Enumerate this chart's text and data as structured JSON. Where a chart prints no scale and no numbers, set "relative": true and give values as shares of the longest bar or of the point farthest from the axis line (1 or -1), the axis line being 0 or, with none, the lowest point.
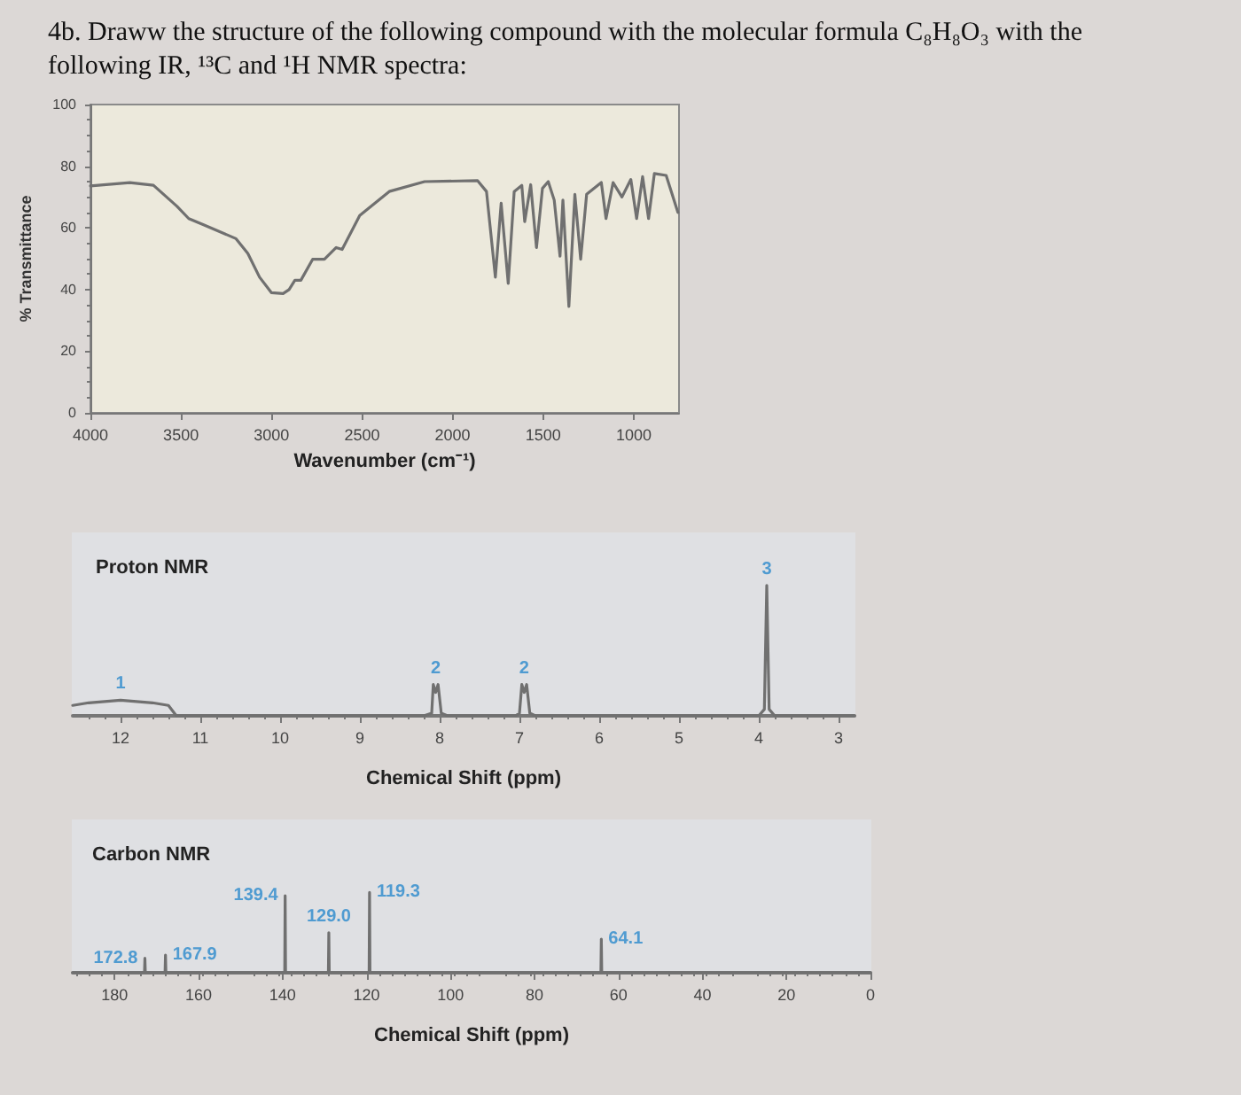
{
  "chart_data": [
    {
      "type": "line",
      "title": "4b. Draww the structure of the following compound with the molecular formula C₈H₈O₃ with the following IR, ¹³C and ¹H NMR spectra:",
      "xlabel": "Wavenumber (cm⁻¹)",
      "ylabel": "% Transmittance",
      "xlim": [
        4000,
        750
      ],
      "xticks": [
        4000,
        3500,
        3000,
        2500,
        2000,
        1500,
        1000
      ],
      "ylim": [
        0,
        100
      ],
      "yticks": [
        0,
        20,
        40,
        60,
        80,
        100
      ],
      "grid": false,
      "marker": "none",
      "line_style": "solid",
      "x": [
        4000,
        3782,
        3652,
        3522,
        3457,
        3375,
        3196,
        3131,
        3066,
        3001,
        2936,
        2903,
        2871,
        2838,
        2773,
        2708,
        2643,
        2610,
        2513,
        2350,
        2155,
        1862,
        1813,
        1764,
        1732,
        1693,
        1660,
        1618,
        1602,
        1569,
        1537,
        1504,
        1472,
        1439,
        1407,
        1391,
        1358,
        1325,
        1293,
        1260,
        1179,
        1153,
        1114,
        1065,
        1016,
        984,
        951,
        918,
        886,
        821,
        756
      ],
      "series": [
        {
          "color": "#707070",
          "values": [
            73.6,
            74.7,
            73.8,
            67,
            63,
            61,
            56.5,
            51.7,
            44,
            39,
            38.7,
            40,
            43,
            43,
            49.8,
            49.8,
            53.6,
            53,
            64,
            71.8,
            75,
            75.3,
            71.8,
            44,
            68,
            42,
            71.8,
            73.8,
            62,
            74,
            53.6,
            72.8,
            75,
            69,
            50.8,
            69,
            34.5,
            70.9,
            49.8,
            70.9,
            74.7,
            63,
            74.7,
            70,
            75.7,
            63,
            76.6,
            63,
            77.6,
            77,
            65
          ]
        }
      ]
    },
    {
      "type": "line",
      "title": "Proton NMR",
      "xlabel": "Chemical Shift (ppm)",
      "relative": true,
      "xlim": [
        12.6,
        2.8
      ],
      "xticks": [
        12,
        11,
        10,
        9,
        8,
        7,
        6,
        5,
        4,
        3
      ],
      "grid": false,
      "marker": "none",
      "line_style": "solid",
      "x": [
        12.6,
        12.4,
        12.2,
        12.0,
        11.8,
        11.6,
        11.4,
        11.3,
        8.2,
        8.1,
        8.08,
        8.05,
        8.02,
        7.98,
        7.9,
        7.05,
        7.0,
        6.97,
        6.94,
        6.91,
        6.87,
        6.8,
        4.0,
        3.93,
        3.9,
        3.87,
        3.8,
        2.8
      ],
      "series": [
        {
          "color": "#707070",
          "values": [
            0.08,
            0.1,
            0.11,
            0.12,
            0.11,
            0.1,
            0.08,
            0,
            0,
            0.02,
            0.24,
            0.18,
            0.24,
            0.02,
            0,
            0,
            0.02,
            0.24,
            0.18,
            0.24,
            0.02,
            0,
            0,
            0.05,
            1,
            0.05,
            0,
            0
          ]
        }
      ],
      "annotations": [
        {
          "text": "1",
          "x": 12.0,
          "y": 0.12
        },
        {
          "text": "2",
          "x": 8.05,
          "y": 0.24
        },
        {
          "text": "2",
          "x": 6.94,
          "y": 0.24
        },
        {
          "text": "3",
          "x": 3.9,
          "y": 1
        }
      ]
    },
    {
      "type": "line",
      "title": "Carbon NMR",
      "xlabel": "Chemical Shift (ppm)",
      "relative": true,
      "xlim": [
        190,
        0
      ],
      "xticks": [
        180,
        160,
        140,
        120,
        100,
        80,
        60,
        40,
        20,
        0
      ],
      "grid": false,
      "marker": "none",
      "line_style": "solid",
      "x": [
        190,
        172.9,
        172.8,
        172.7,
        168.0,
        167.9,
        167.8,
        139.5,
        139.4,
        139.3,
        129.1,
        129.0,
        128.9,
        119.4,
        119.3,
        119.2,
        64.2,
        64.1,
        64.0,
        0
      ],
      "series": [
        {
          "color": "#707070",
          "values": [
            0,
            0,
            0.18,
            0,
            0,
            0.22,
            0,
            0,
            0.96,
            0,
            0,
            0.5,
            0,
            0,
            1,
            0,
            0,
            0.42,
            0,
            0
          ]
        }
      ],
      "annotations": [
        {
          "text": "172.8",
          "x": 172.8,
          "y": 0.18
        },
        {
          "text": "167.9",
          "x": 167.9,
          "y": 0.22
        },
        {
          "text": "139.4",
          "x": 139.4,
          "y": 0.96
        },
        {
          "text": "129.0",
          "x": 129.0,
          "y": 0.5
        },
        {
          "text": "119.3",
          "x": 119.3,
          "y": 1
        },
        {
          "text": "64.1",
          "x": 64.1,
          "y": 0.42
        }
      ]
    }
  ]
}
